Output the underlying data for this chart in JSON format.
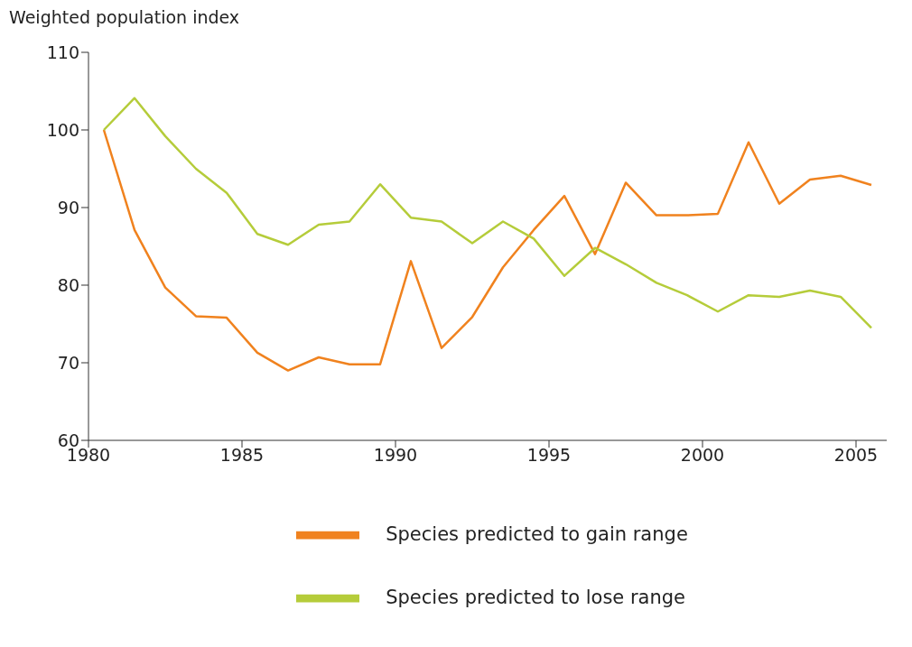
{
  "chart_data": {
    "type": "line",
    "ylabel": "Weighted population index",
    "x": [
      1980.5,
      1981.5,
      1982.5,
      1983.5,
      1984.5,
      1985.5,
      1986.5,
      1987.5,
      1988.5,
      1989.5,
      1990.5,
      1991.5,
      1992.5,
      1993.5,
      1994.5,
      1995.5,
      1996.5,
      1997.5,
      1998.5,
      1999.5,
      2000.5,
      2001.5,
      2002.5,
      2003.5,
      2004.5,
      2005.5
    ],
    "series": [
      {
        "name": "Species predicted to gain range",
        "color": "#f0821e",
        "values": [
          100,
          87.1,
          79.7,
          76.0,
          75.8,
          71.3,
          69.0,
          70.7,
          69.8,
          69.8,
          83.1,
          71.9,
          75.9,
          82.3,
          87.1,
          91.5,
          84.0,
          93.2,
          89.0,
          89.0,
          89.2,
          98.4,
          90.5,
          93.6,
          94.1,
          92.9
        ]
      },
      {
        "name": "Species predicted to lose range",
        "color": "#b5cc3a",
        "values": [
          100,
          104.1,
          99.2,
          95.0,
          91.9,
          86.6,
          85.2,
          87.8,
          88.2,
          93.0,
          88.7,
          88.2,
          85.4,
          88.2,
          86.0,
          81.2,
          84.8,
          82.7,
          80.3,
          78.7,
          76.6,
          78.7,
          78.5,
          79.3,
          78.5,
          74.5
        ]
      }
    ],
    "xlim": [
      1980,
      2006
    ],
    "xticks": [
      1980,
      1985,
      1990,
      1995,
      2000,
      2005
    ],
    "ylim": [
      60,
      110
    ],
    "yticks": [
      60,
      70,
      80,
      90,
      100,
      110
    ],
    "grid": false,
    "legend": "bottom",
    "marker": "none",
    "line_style": "solid"
  }
}
